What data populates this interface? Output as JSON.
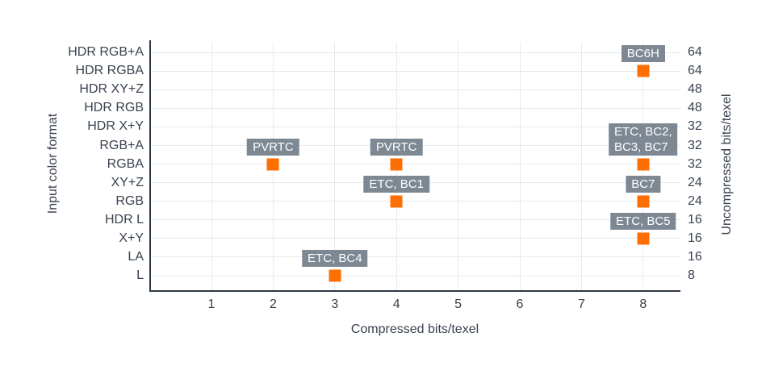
{
  "chart_data": {
    "type": "scatter",
    "title": "",
    "xlabel": "Compressed bits/texel",
    "ylabel_left": "Input color format",
    "ylabel_right": "Uncompressed bits/texel",
    "categories": [
      "HDR RGB+A",
      "HDR RGBA",
      "HDR XY+Z",
      "HDR RGB",
      "HDR X+Y",
      "RGB+A",
      "RGBA",
      "XY+Z",
      "RGB",
      "HDR L",
      "X+Y",
      "LA",
      "L"
    ],
    "right_axis_values": [
      64,
      64,
      48,
      48,
      32,
      32,
      32,
      24,
      24,
      16,
      16,
      16,
      8
    ],
    "x_ticks": [
      1,
      2,
      3,
      4,
      5,
      6,
      7,
      8
    ],
    "xlim": [
      0,
      8.6
    ],
    "grid": true,
    "legend_position": "none",
    "points": [
      {
        "x": 8,
        "category": "HDR RGBA",
        "label": "BC6H"
      },
      {
        "x": 2,
        "category": "RGBA",
        "label": "PVRTC"
      },
      {
        "x": 4,
        "category": "RGBA",
        "label": "PVRTC"
      },
      {
        "x": 8,
        "category": "RGBA",
        "label": "ETC, BC2,\nBC3, BC7"
      },
      {
        "x": 4,
        "category": "RGB",
        "label": "ETC, BC1"
      },
      {
        "x": 8,
        "category": "RGB",
        "label": "BC7"
      },
      {
        "x": 8,
        "category": "X+Y",
        "label": "ETC, BC5"
      },
      {
        "x": 3,
        "category": "L",
        "label": "ETC, BC4"
      }
    ],
    "colors": {
      "marker": "#ff6e00",
      "label_bg": "#7d8893",
      "label_text": "#ffffff",
      "grid": "#e6eaed",
      "axis_line": "#2e3a45",
      "text": "#39424e",
      "background": "#ffffff"
    }
  }
}
